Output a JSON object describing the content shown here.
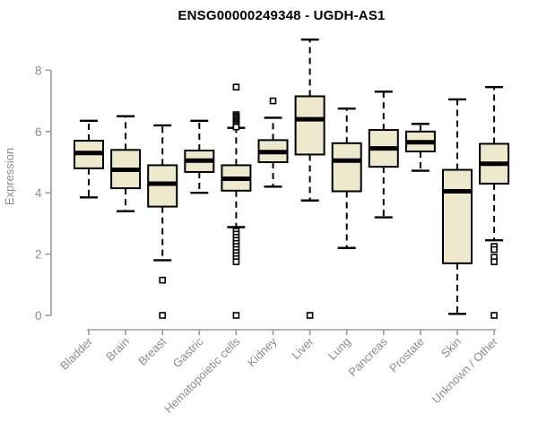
{
  "chart_data": {
    "type": "boxplot",
    "title": "ENSG00000249348 - UGDH-AS1",
    "ylabel": "Expression",
    "xlabel": "",
    "yticks": [
      0,
      2,
      4,
      6,
      8
    ],
    "ylim": [
      0,
      9.2
    ],
    "grid": false,
    "legend": null,
    "categories": [
      "Bladder",
      "Brain",
      "Breast",
      "Gastric",
      "Hematopoietic cells",
      "Kidney",
      "Liver",
      "Lung",
      "Pancreas",
      "Prostate",
      "Skin",
      "Unknown / Other"
    ],
    "boxes": [
      {
        "category": "Bladder",
        "min": 3.85,
        "q1": 4.8,
        "median": 5.3,
        "q3": 5.7,
        "max": 6.35,
        "outliers": []
      },
      {
        "category": "Brain",
        "min": 3.4,
        "q1": 4.15,
        "median": 4.75,
        "q3": 5.4,
        "max": 6.5,
        "outliers": []
      },
      {
        "category": "Breast",
        "min": 1.8,
        "q1": 3.55,
        "median": 4.3,
        "q3": 4.9,
        "max": 6.2,
        "outliers": [
          1.15,
          0
        ]
      },
      {
        "category": "Gastric",
        "min": 4.0,
        "q1": 4.68,
        "median": 5.05,
        "q3": 5.38,
        "max": 6.35,
        "outliers": []
      },
      {
        "category": "Hematopoietic cells",
        "min": 2.88,
        "q1": 4.07,
        "median": 4.46,
        "q3": 4.9,
        "max": 6.12,
        "outliers": [
          7.45,
          6.55,
          6.5,
          6.45,
          6.4,
          6.35,
          6.3,
          6.25,
          6.2,
          6.15,
          2.75,
          2.65,
          2.55,
          2.45,
          2.35,
          2.25,
          2.15,
          2.05,
          1.95,
          1.85,
          1.75,
          0
        ]
      },
      {
        "category": "Kidney",
        "min": 4.2,
        "q1": 5.0,
        "median": 5.33,
        "q3": 5.72,
        "max": 6.45,
        "outliers": [
          7.0
        ]
      },
      {
        "category": "Liver",
        "min": 3.75,
        "q1": 5.25,
        "median": 6.4,
        "q3": 7.15,
        "max": 9.0,
        "outliers": [
          0
        ]
      },
      {
        "category": "Lung",
        "min": 2.2,
        "q1": 4.05,
        "median": 5.05,
        "q3": 5.62,
        "max": 6.75,
        "outliers": []
      },
      {
        "category": "Pancreas",
        "min": 3.2,
        "q1": 4.85,
        "median": 5.45,
        "q3": 6.05,
        "max": 7.3,
        "outliers": []
      },
      {
        "category": "Prostate",
        "min": 4.72,
        "q1": 5.35,
        "median": 5.65,
        "q3": 6.0,
        "max": 6.25,
        "outliers": []
      },
      {
        "category": "Skin",
        "min": 0.05,
        "q1": 1.7,
        "median": 4.05,
        "q3": 4.75,
        "max": 7.05,
        "outliers": []
      },
      {
        "category": "Unknown / Other",
        "min": 2.45,
        "q1": 4.3,
        "median": 4.95,
        "q3": 5.6,
        "max": 7.45,
        "outliers": [
          2.25,
          2.15,
          1.9,
          1.75,
          0
        ]
      }
    ]
  },
  "colors": {
    "box_fill": "#EEE8CD",
    "box_stroke": "#000000",
    "median": "#000000",
    "whisker": "#000000",
    "outlier_fill": "#FFFFFF",
    "axis": "#9A9A9A",
    "tick_text": "#8C8C8C",
    "title_text": "#000000",
    "background": "#FFFFFF"
  }
}
